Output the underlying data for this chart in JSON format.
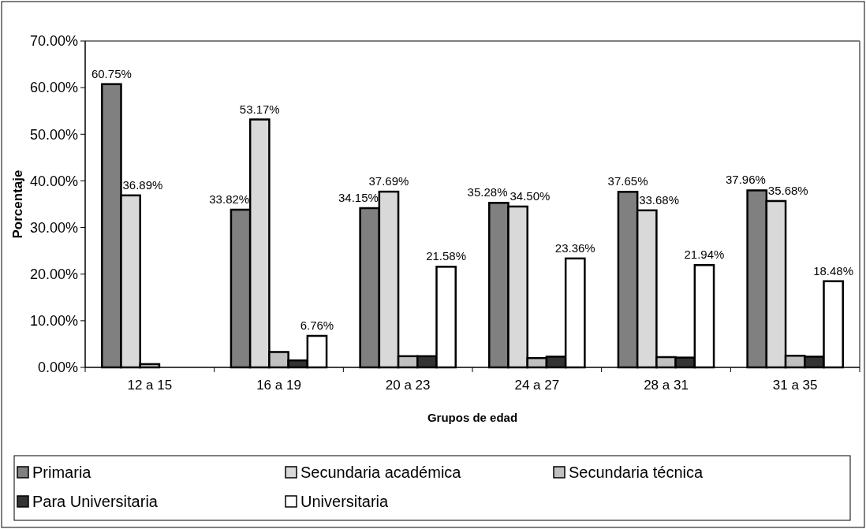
{
  "chart_data": {
    "type": "bar",
    "xlabel": "Grupos de edad",
    "ylabel": "Porcentaje",
    "categories": [
      "12 a 15",
      "16 a 19",
      "20 a 23",
      "24 a 27",
      "28 a 31",
      "31 a 35"
    ],
    "ylim": [
      0,
      70
    ],
    "yticks": [
      {
        "value": 0,
        "label": "0.00%"
      },
      {
        "value": 10,
        "label": "10.00%"
      },
      {
        "value": 20,
        "label": "20.00%"
      },
      {
        "value": 30,
        "label": "30.00%"
      },
      {
        "value": 40,
        "label": "40.00%"
      },
      {
        "value": 50,
        "label": "50.00%"
      },
      {
        "value": 60,
        "label": "60.00%"
      },
      {
        "value": 70,
        "label": "70.00%"
      }
    ],
    "legend": "bottom",
    "grid": false,
    "series": [
      {
        "name": "Primaria",
        "color": "#808080",
        "values": [
          60.75,
          33.82,
          34.15,
          35.28,
          37.65,
          37.96
        ],
        "value_labels": [
          "60.75%",
          "33.82%",
          "34.15%",
          "35.28%",
          "37.65%",
          "37.96%"
        ]
      },
      {
        "name": "Secundaria académica",
        "color": "#d9d9d9",
        "values": [
          36.89,
          53.17,
          37.69,
          34.5,
          33.68,
          35.68
        ],
        "value_labels": [
          "36.89%",
          "53.17%",
          "37.69%",
          "34.50%",
          "33.68%",
          "35.68%"
        ]
      },
      {
        "name": "Secundaria técnica",
        "color": "#c0c0c0",
        "values": [
          0.7,
          3.3,
          2.4,
          2.0,
          2.2,
          2.5
        ]
      },
      {
        "name": "Para Universitaria",
        "color": "#333333",
        "values": [
          0,
          1.5,
          2.4,
          2.3,
          2.1,
          2.3
        ]
      },
      {
        "name": "Universitaria",
        "color": "#ffffff",
        "values": [
          0,
          6.76,
          21.58,
          23.36,
          21.94,
          18.48
        ],
        "value_labels": [
          null,
          "6.76%",
          "21.58%",
          "23.36%",
          "21.94%",
          "18.48%"
        ]
      }
    ]
  }
}
